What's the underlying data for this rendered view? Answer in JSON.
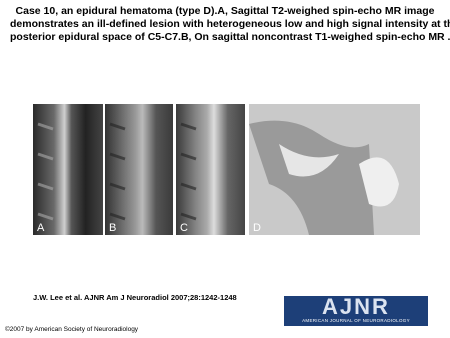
{
  "header": {
    "title_lines": [
      "Case 10, an epidural hematoma (type D).A, Sagittal T2-weighed spin-echo MR image",
      "demonstrates an ill-defined lesion with heterogeneous low and high signal intensity at the",
      "posterior epidural space of C5-C7.B, On sagittal noncontrast T1-weighed spin-echo MR ..."
    ]
  },
  "figure": {
    "panels": [
      "A",
      "B",
      "C",
      "D"
    ]
  },
  "citation": "J.W. Lee et al. AJNR Am J Neuroradiol 2007;28:1242-1248",
  "logo": {
    "name": "AJNR",
    "subtitle": "AMERICAN JOURNAL OF NEURORADIOLOGY"
  },
  "copyright": "©2007 by American Society of Neuroradiology"
}
